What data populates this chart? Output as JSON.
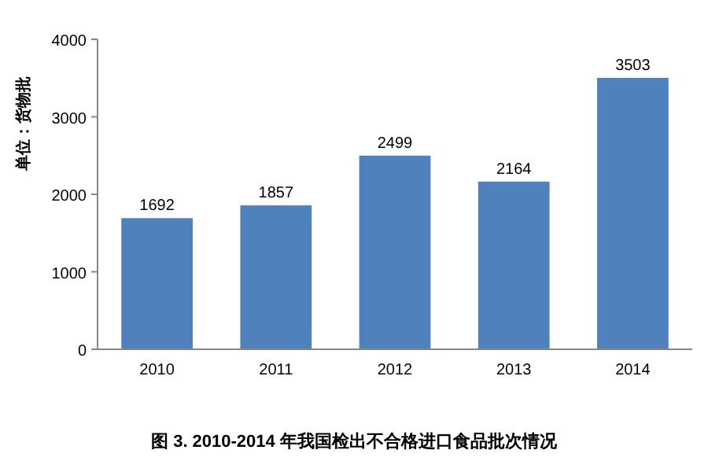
{
  "chart_data": {
    "type": "bar",
    "title": "图 3. 2010-2014 年我国检出不合格进口食品批次情况",
    "ylabel": "单位：货物批",
    "categories": [
      "2010",
      "2011",
      "2012",
      "2013",
      "2014"
    ],
    "values": [
      1692,
      1857,
      2499,
      2164,
      3503
    ],
    "color": "#4f81bd",
    "ylim": [
      0,
      4000
    ],
    "yticks": [
      0,
      1000,
      2000,
      3000,
      4000
    ],
    "data_labels": true
  }
}
